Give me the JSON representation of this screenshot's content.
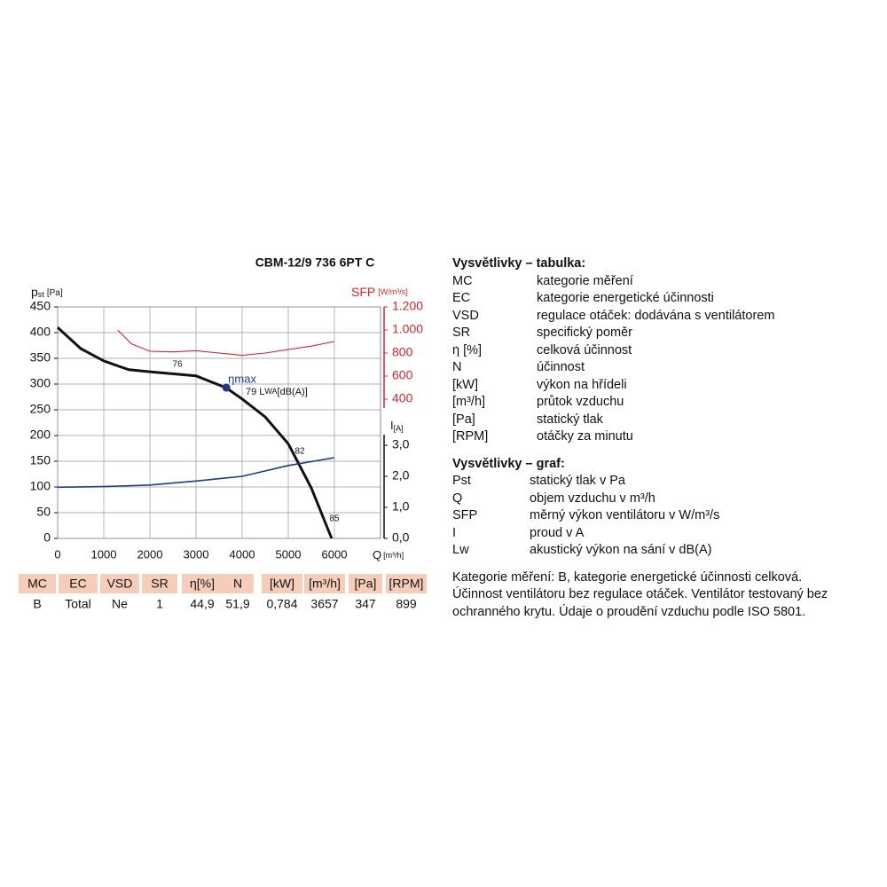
{
  "chart_data": {
    "type": "line",
    "title": "CBM-12/9 736 6PT C",
    "y_label": {
      "symbol": "p",
      "sub": "st",
      "unit": "[Pa]"
    },
    "y2_label": {
      "name": "SFP",
      "unit": "[W/m³/s]"
    },
    "y3_label": {
      "name": "I",
      "unit": "[A]"
    },
    "x_label": {
      "name": "Q",
      "unit": "[m³/h]"
    },
    "xlim": [
      0,
      7000
    ],
    "xticks": [
      0,
      1000,
      2000,
      3000,
      4000,
      5000,
      6000
    ],
    "ylim": [
      0,
      450
    ],
    "yticks": [
      0,
      50,
      100,
      150,
      200,
      250,
      300,
      350,
      400,
      450
    ],
    "y2lim": [
      -808,
      1200
    ],
    "y2ticks": [
      400,
      600,
      800,
      {
        "value": 1000,
        "label": "1.000"
      },
      {
        "value": 1200,
        "label": "1.200"
      }
    ],
    "y3lim": [
      0,
      7.46
    ],
    "y3ticks": [
      {
        "value": 0,
        "label": "0,0"
      },
      {
        "value": 1,
        "label": "1,0"
      },
      {
        "value": 2,
        "label": "2,0"
      },
      {
        "value": 3,
        "label": "3,0"
      }
    ],
    "grid": true,
    "series": [
      {
        "color": "#111111",
        "axis": "y",
        "x": [
          0,
          500,
          1000,
          1540,
          2000,
          3000,
          3650,
          4000,
          4500,
          5000,
          5500,
          5940
        ],
        "values": [
          410,
          369,
          345,
          328,
          324,
          316,
          293,
          271,
          236,
          184,
          98,
          0
        ]
      },
      {
        "color": "#d9232e",
        "axis": "y2",
        "x": [
          1300,
          1600,
          2000,
          2500,
          3000,
          3500,
          4000,
          4500,
          5000,
          5500,
          6000
        ],
        "values": [
          1000,
          880,
          815,
          810,
          820,
          800,
          780,
          800,
          830,
          860,
          900
        ]
      },
      {
        "color": "#1f3a8a",
        "axis": "y3",
        "x": [
          0,
          1000,
          2000,
          3000,
          4000,
          5000,
          6000
        ],
        "values": [
          1.65,
          1.67,
          1.72,
          1.85,
          2.0,
          2.35,
          2.6
        ]
      }
    ],
    "eta_max": {
      "label": "ηmax",
      "x": 3657,
      "y": 293
    },
    "lw_label": {
      "value": "79",
      "symbol": "L",
      "sub": "WA",
      "unit": "[dB(A)]"
    },
    "annotations": [
      "76",
      "82",
      "85"
    ]
  },
  "table": {
    "header": [
      "MC",
      "EC",
      "VSD",
      "SR",
      "η[%]",
      "N",
      "[kW]",
      "[m³/h]",
      "[Pa]",
      "[RPM]"
    ],
    "row": [
      "B",
      "Total",
      "Ne",
      "1",
      "44,9",
      "51,9",
      "0,784",
      "3657",
      "347",
      "899"
    ]
  },
  "legend_table": {
    "title": "Vysvětlivky – tabulka:",
    "items": [
      [
        "MC",
        "kategorie měření"
      ],
      [
        "EC",
        "kategorie energetické účinnosti"
      ],
      [
        "VSD",
        "regulace otáček: dodávána s ventilátorem"
      ],
      [
        "SR",
        "specifický poměr"
      ],
      [
        "η [%]",
        "celková účinnost"
      ],
      [
        "N",
        "účinnost"
      ],
      [
        "[kW]",
        "výkon na hřídeli"
      ],
      [
        "[m³/h]",
        "průtok vzduchu"
      ],
      [
        "[Pa]",
        "statický tlak"
      ],
      [
        "[RPM]",
        "otáčky za minutu"
      ]
    ]
  },
  "legend_graph": {
    "title": "Vysvětlivky – graf:",
    "items": [
      [
        "Pst",
        "statický tlak v Pa"
      ],
      [
        "Q",
        "objem vzduchu v m³/h"
      ],
      [
        "SFP",
        "měrný výkon ventilátoru v W/m³/s"
      ],
      [
        "I",
        "proud v A"
      ],
      [
        "Lw",
        "akustický výkon na sání v dB(A)"
      ]
    ]
  },
  "notes": [
    "Kategorie měření: B, kategorie energetické účinnosti celková.",
    "Účinnost ventilátoru bez regulace otáček. Ventilátor testovaný bez",
    "ochranného krytu. Údaje o proudění vzduchu podle ISO 5801."
  ]
}
